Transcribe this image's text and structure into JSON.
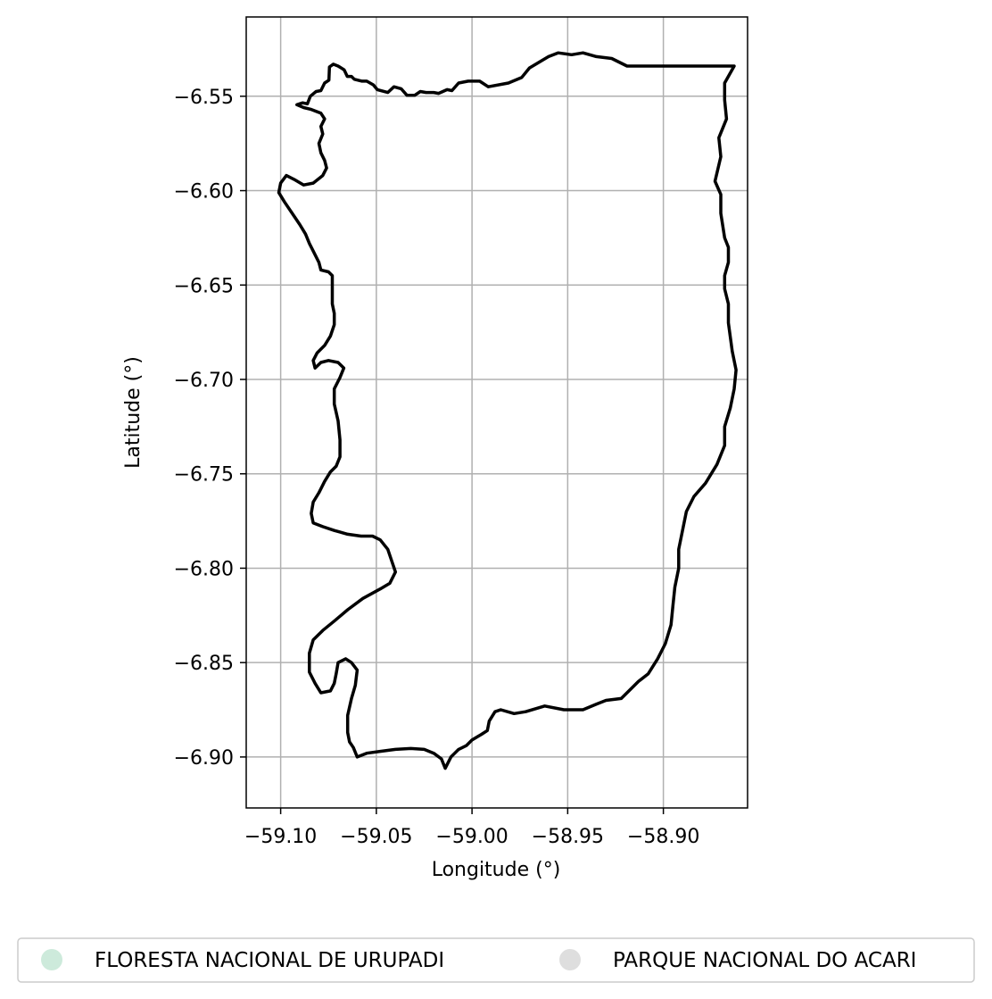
{
  "chart_data": {
    "type": "map",
    "xlabel": "Longitude (°)",
    "ylabel": "Latitude (°)",
    "xlim": [
      -59.118,
      -58.856
    ],
    "ylim": [
      -6.927,
      -6.508
    ],
    "x_ticks": [
      {
        "value": -59.1,
        "label": "−59.10"
      },
      {
        "value": -59.05,
        "label": "−59.05"
      },
      {
        "value": -59.0,
        "label": "−59.00"
      },
      {
        "value": -58.95,
        "label": "−58.95"
      },
      {
        "value": -58.9,
        "label": "−58.90"
      }
    ],
    "y_ticks": [
      {
        "value": -6.55,
        "label": "−6.55"
      },
      {
        "value": -6.6,
        "label": "−6.60"
      },
      {
        "value": -6.65,
        "label": "−6.65"
      },
      {
        "value": -6.7,
        "label": "−6.70"
      },
      {
        "value": -6.75,
        "label": "−6.75"
      },
      {
        "value": -6.8,
        "label": "−6.80"
      },
      {
        "value": -6.85,
        "label": "−6.85"
      },
      {
        "value": -6.9,
        "label": "−6.90"
      }
    ],
    "grid": true,
    "legend_placement": "bottom-center",
    "legend": [
      {
        "label": "FLORESTA NACIONAL DE URUPADI",
        "color": "#cdeadb"
      },
      {
        "label": "PARQUE NACIONAL DO ACARI",
        "color": "#dedede"
      }
    ],
    "boundary_color": "#000000",
    "boundary": [
      [
        -59.0915,
        -6.5545
      ],
      [
        -59.0885,
        -6.5535
      ],
      [
        -59.086,
        -6.554
      ],
      [
        -59.0845,
        -6.55
      ],
      [
        -59.0815,
        -6.5475
      ],
      [
        -59.079,
        -6.547
      ],
      [
        -59.077,
        -6.543
      ],
      [
        -59.0748,
        -6.5415
      ],
      [
        -59.0745,
        -6.5345
      ],
      [
        -59.0725,
        -6.533
      ],
      [
        -59.07,
        -6.534
      ],
      [
        -59.0668,
        -6.536
      ],
      [
        -59.0652,
        -6.5395
      ],
      [
        -59.063,
        -6.5395
      ],
      [
        -59.0615,
        -6.541
      ],
      [
        -59.0575,
        -6.542
      ],
      [
        -59.055,
        -6.542
      ],
      [
        -59.0515,
        -6.544
      ],
      [
        -59.0495,
        -6.5465
      ],
      [
        -59.044,
        -6.548
      ],
      [
        -59.0408,
        -6.545
      ],
      [
        -59.037,
        -6.546
      ],
      [
        -59.034,
        -6.5495
      ],
      [
        -59.03,
        -6.5495
      ],
      [
        -59.027,
        -6.5475
      ],
      [
        -59.024,
        -6.548
      ],
      [
        -59.02,
        -6.548
      ],
      [
        -59.0175,
        -6.5485
      ],
      [
        -59.013,
        -6.5465
      ],
      [
        -59.0105,
        -6.547
      ],
      [
        -59.007,
        -6.543
      ],
      [
        -59.002,
        -6.542
      ],
      [
        -58.996,
        -6.542
      ],
      [
        -58.9915,
        -6.545
      ],
      [
        -58.981,
        -6.543
      ],
      [
        -58.974,
        -6.54
      ],
      [
        -58.97,
        -6.535
      ],
      [
        -58.965,
        -6.532
      ],
      [
        -58.96,
        -6.529
      ],
      [
        -58.955,
        -6.527
      ],
      [
        -58.948,
        -6.528
      ],
      [
        -58.942,
        -6.527
      ],
      [
        -58.935,
        -6.529
      ],
      [
        -58.927,
        -6.53
      ],
      [
        -58.919,
        -6.534
      ],
      [
        -58.888,
        -6.534
      ],
      [
        -58.863,
        -6.534
      ],
      [
        -58.868,
        -6.543
      ],
      [
        -58.868,
        -6.552
      ],
      [
        -58.867,
        -6.562
      ],
      [
        -58.871,
        -6.572
      ],
      [
        -58.87,
        -6.582
      ],
      [
        -58.873,
        -6.595
      ],
      [
        -58.87,
        -6.602
      ],
      [
        -58.87,
        -6.612
      ],
      [
        -58.868,
        -6.625
      ],
      [
        -58.866,
        -6.63
      ],
      [
        -58.866,
        -6.638
      ],
      [
        -58.868,
        -6.645
      ],
      [
        -58.868,
        -6.652
      ],
      [
        -58.866,
        -6.66
      ],
      [
        -58.866,
        -6.67
      ],
      [
        -58.864,
        -6.685
      ],
      [
        -58.862,
        -6.695
      ],
      [
        -58.863,
        -6.705
      ],
      [
        -58.865,
        -6.715
      ],
      [
        -58.868,
        -6.725
      ],
      [
        -58.868,
        -6.735
      ],
      [
        -58.872,
        -6.745
      ],
      [
        -58.878,
        -6.755
      ],
      [
        -58.884,
        -6.762
      ],
      [
        -58.888,
        -6.77
      ],
      [
        -58.89,
        -6.78
      ],
      [
        -58.892,
        -6.79
      ],
      [
        -58.892,
        -6.8
      ],
      [
        -58.894,
        -6.81
      ],
      [
        -58.895,
        -6.82
      ],
      [
        -58.896,
        -6.83
      ],
      [
        -58.899,
        -6.84
      ],
      [
        -58.903,
        -6.848
      ],
      [
        -58.908,
        -6.856
      ],
      [
        -58.913,
        -6.86
      ],
      [
        -58.918,
        -6.865
      ],
      [
        -58.922,
        -6.869
      ],
      [
        -58.93,
        -6.87
      ],
      [
        -58.935,
        -6.872
      ],
      [
        -58.942,
        -6.875
      ],
      [
        -58.952,
        -6.875
      ],
      [
        -58.962,
        -6.873
      ],
      [
        -58.972,
        -6.876
      ],
      [
        -58.978,
        -6.877
      ],
      [
        -58.985,
        -6.875
      ],
      [
        -58.988,
        -6.876
      ],
      [
        -58.991,
        -6.881
      ],
      [
        -58.992,
        -6.886
      ],
      [
        -58.995,
        -6.888
      ],
      [
        -59.0,
        -6.891
      ],
      [
        -59.003,
        -6.894
      ],
      [
        -59.007,
        -6.896
      ],
      [
        -59.011,
        -6.9
      ],
      [
        -59.014,
        -6.906
      ],
      [
        -59.016,
        -6.901
      ],
      [
        -59.02,
        -6.898
      ],
      [
        -59.025,
        -6.896
      ],
      [
        -59.032,
        -6.8955
      ],
      [
        -59.04,
        -6.896
      ],
      [
        -59.048,
        -6.897
      ],
      [
        -59.055,
        -6.898
      ],
      [
        -59.06,
        -6.9
      ],
      [
        -59.062,
        -6.895
      ],
      [
        -59.064,
        -6.892
      ],
      [
        -59.065,
        -6.887
      ],
      [
        -59.065,
        -6.878
      ],
      [
        -59.063,
        -6.869
      ],
      [
        -59.061,
        -6.862
      ],
      [
        -59.06,
        -6.854
      ],
      [
        -59.063,
        -6.85
      ],
      [
        -59.066,
        -6.848
      ],
      [
        -59.07,
        -6.85
      ],
      [
        -59.071,
        -6.856
      ],
      [
        -59.072,
        -6.861
      ],
      [
        -59.074,
        -6.865
      ],
      [
        -59.079,
        -6.866
      ],
      [
        -59.082,
        -6.861
      ],
      [
        -59.085,
        -6.855
      ],
      [
        -59.085,
        -6.845
      ],
      [
        -59.083,
        -6.838
      ],
      [
        -59.078,
        -6.833
      ],
      [
        -59.072,
        -6.828
      ],
      [
        -59.065,
        -6.822
      ],
      [
        -59.057,
        -6.816
      ],
      [
        -59.048,
        -6.811
      ],
      [
        -59.043,
        -6.808
      ],
      [
        -59.04,
        -6.802
      ],
      [
        -59.042,
        -6.796
      ],
      [
        -59.044,
        -6.79
      ],
      [
        -59.048,
        -6.785
      ],
      [
        -59.052,
        -6.783
      ],
      [
        -59.058,
        -6.783
      ],
      [
        -59.065,
        -6.782
      ],
      [
        -59.072,
        -6.78
      ],
      [
        -59.078,
        -6.778
      ],
      [
        -59.083,
        -6.776
      ],
      [
        -59.084,
        -6.771
      ],
      [
        -59.083,
        -6.765
      ],
      [
        -59.08,
        -6.76
      ],
      [
        -59.077,
        -6.754
      ],
      [
        -59.074,
        -6.749
      ],
      [
        -59.071,
        -6.746
      ],
      [
        -59.069,
        -6.741
      ],
      [
        -59.069,
        -6.732
      ],
      [
        -59.07,
        -6.722
      ],
      [
        -59.072,
        -6.713
      ],
      [
        -59.072,
        -6.705
      ],
      [
        -59.069,
        -6.699
      ],
      [
        -59.067,
        -6.694
      ],
      [
        -59.07,
        -6.691
      ],
      [
        -59.075,
        -6.69
      ],
      [
        -59.079,
        -6.691
      ],
      [
        -59.082,
        -6.694
      ],
      [
        -59.083,
        -6.69
      ],
      [
        -59.081,
        -6.686
      ],
      [
        -59.077,
        -6.682
      ],
      [
        -59.074,
        -6.677
      ],
      [
        -59.072,
        -6.671
      ],
      [
        -59.072,
        -6.665
      ],
      [
        -59.073,
        -6.66
      ],
      [
        -59.073,
        -6.645
      ],
      [
        -59.075,
        -6.643
      ],
      [
        -59.079,
        -6.642
      ],
      [
        -59.08,
        -6.638
      ],
      [
        -59.083,
        -6.632
      ],
      [
        -59.085,
        -6.628
      ],
      [
        -59.087,
        -6.623
      ],
      [
        -59.09,
        -6.618
      ],
      [
        -59.094,
        -6.612
      ],
      [
        -59.098,
        -6.606
      ],
      [
        -59.101,
        -6.601
      ],
      [
        -59.1,
        -6.596
      ],
      [
        -59.097,
        -6.592
      ],
      [
        -59.093,
        -6.594
      ],
      [
        -59.088,
        -6.597
      ],
      [
        -59.083,
        -6.596
      ],
      [
        -59.078,
        -6.592
      ],
      [
        -59.076,
        -6.588
      ],
      [
        -59.077,
        -6.584
      ],
      [
        -59.079,
        -6.58
      ],
      [
        -59.08,
        -6.575
      ],
      [
        -59.078,
        -6.57
      ],
      [
        -59.079,
        -6.566
      ],
      [
        -59.077,
        -6.562
      ],
      [
        -59.079,
        -6.559
      ],
      [
        -59.084,
        -6.557
      ],
      [
        -59.088,
        -6.556
      ],
      [
        -59.0915,
        -6.5545
      ]
    ]
  }
}
